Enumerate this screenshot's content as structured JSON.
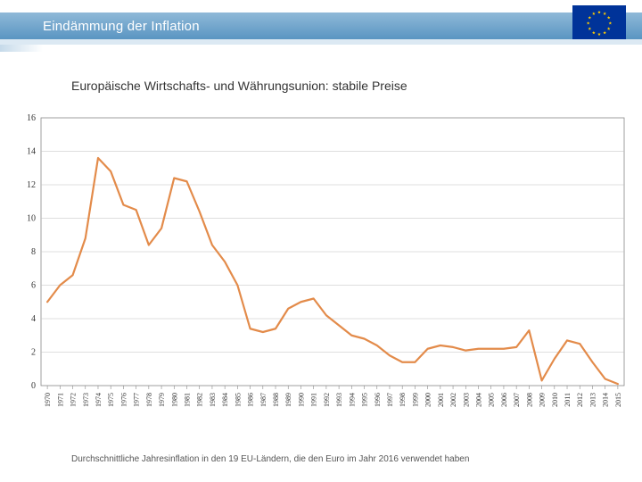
{
  "header": {
    "title": "Eindämmung der Inflation",
    "bar_gradient_top": "#8fb9d8",
    "bar_gradient_bottom": "#5a95c2",
    "title_color": "#ffffff",
    "title_fontsize": 15
  },
  "flag": {
    "bg": "#003399",
    "star_color": "#ffcc00",
    "star_count": 12
  },
  "subtitle": {
    "text": "Europäische Wirtschafts- und Währungsunion: stabile Preise",
    "fontsize": 14,
    "color": "#333333"
  },
  "chart": {
    "type": "line",
    "line_color": "#e38b4a",
    "line_width": 2.2,
    "background_color": "#ffffff",
    "plot_border_color": "#888888",
    "grid_color": "#bfbfbf",
    "grid_width": 0.6,
    "axis_font_color": "#333333",
    "axis_fontsize": 10,
    "xlabel_fontsize": 8,
    "ylim": [
      0,
      16
    ],
    "ytick_step": 2,
    "yticks": [
      0,
      2,
      4,
      6,
      8,
      10,
      12,
      14,
      16
    ],
    "years": [
      1970,
      1971,
      1972,
      1973,
      1974,
      1975,
      1976,
      1977,
      1978,
      1979,
      1980,
      1981,
      1982,
      1983,
      1984,
      1985,
      1986,
      1987,
      1988,
      1989,
      1990,
      1991,
      1992,
      1993,
      1994,
      1995,
      1996,
      1997,
      1998,
      1999,
      2000,
      2001,
      2002,
      2003,
      2004,
      2005,
      2006,
      2007,
      2008,
      2009,
      2010,
      2011,
      2012,
      2013,
      2014,
      2015
    ],
    "values": [
      5.0,
      6.0,
      6.6,
      8.8,
      13.6,
      12.8,
      10.8,
      10.5,
      8.4,
      9.4,
      12.4,
      12.2,
      10.4,
      8.4,
      7.4,
      6.0,
      3.4,
      3.2,
      3.4,
      4.6,
      5.0,
      5.2,
      4.2,
      3.6,
      3.0,
      2.8,
      2.4,
      1.8,
      1.4,
      1.4,
      2.2,
      2.4,
      2.3,
      2.1,
      2.2,
      2.2,
      2.2,
      2.3,
      3.3,
      0.3,
      1.6,
      2.7,
      2.5,
      1.4,
      0.4,
      0.1
    ],
    "xlabel_rotation": 90
  },
  "footnote": {
    "text": "Durchschnittliche Jahresinflation in den 19 EU-Ländern, die den Euro im Jahr 2016 verwendet haben",
    "fontsize": 10,
    "color": "#555555"
  }
}
